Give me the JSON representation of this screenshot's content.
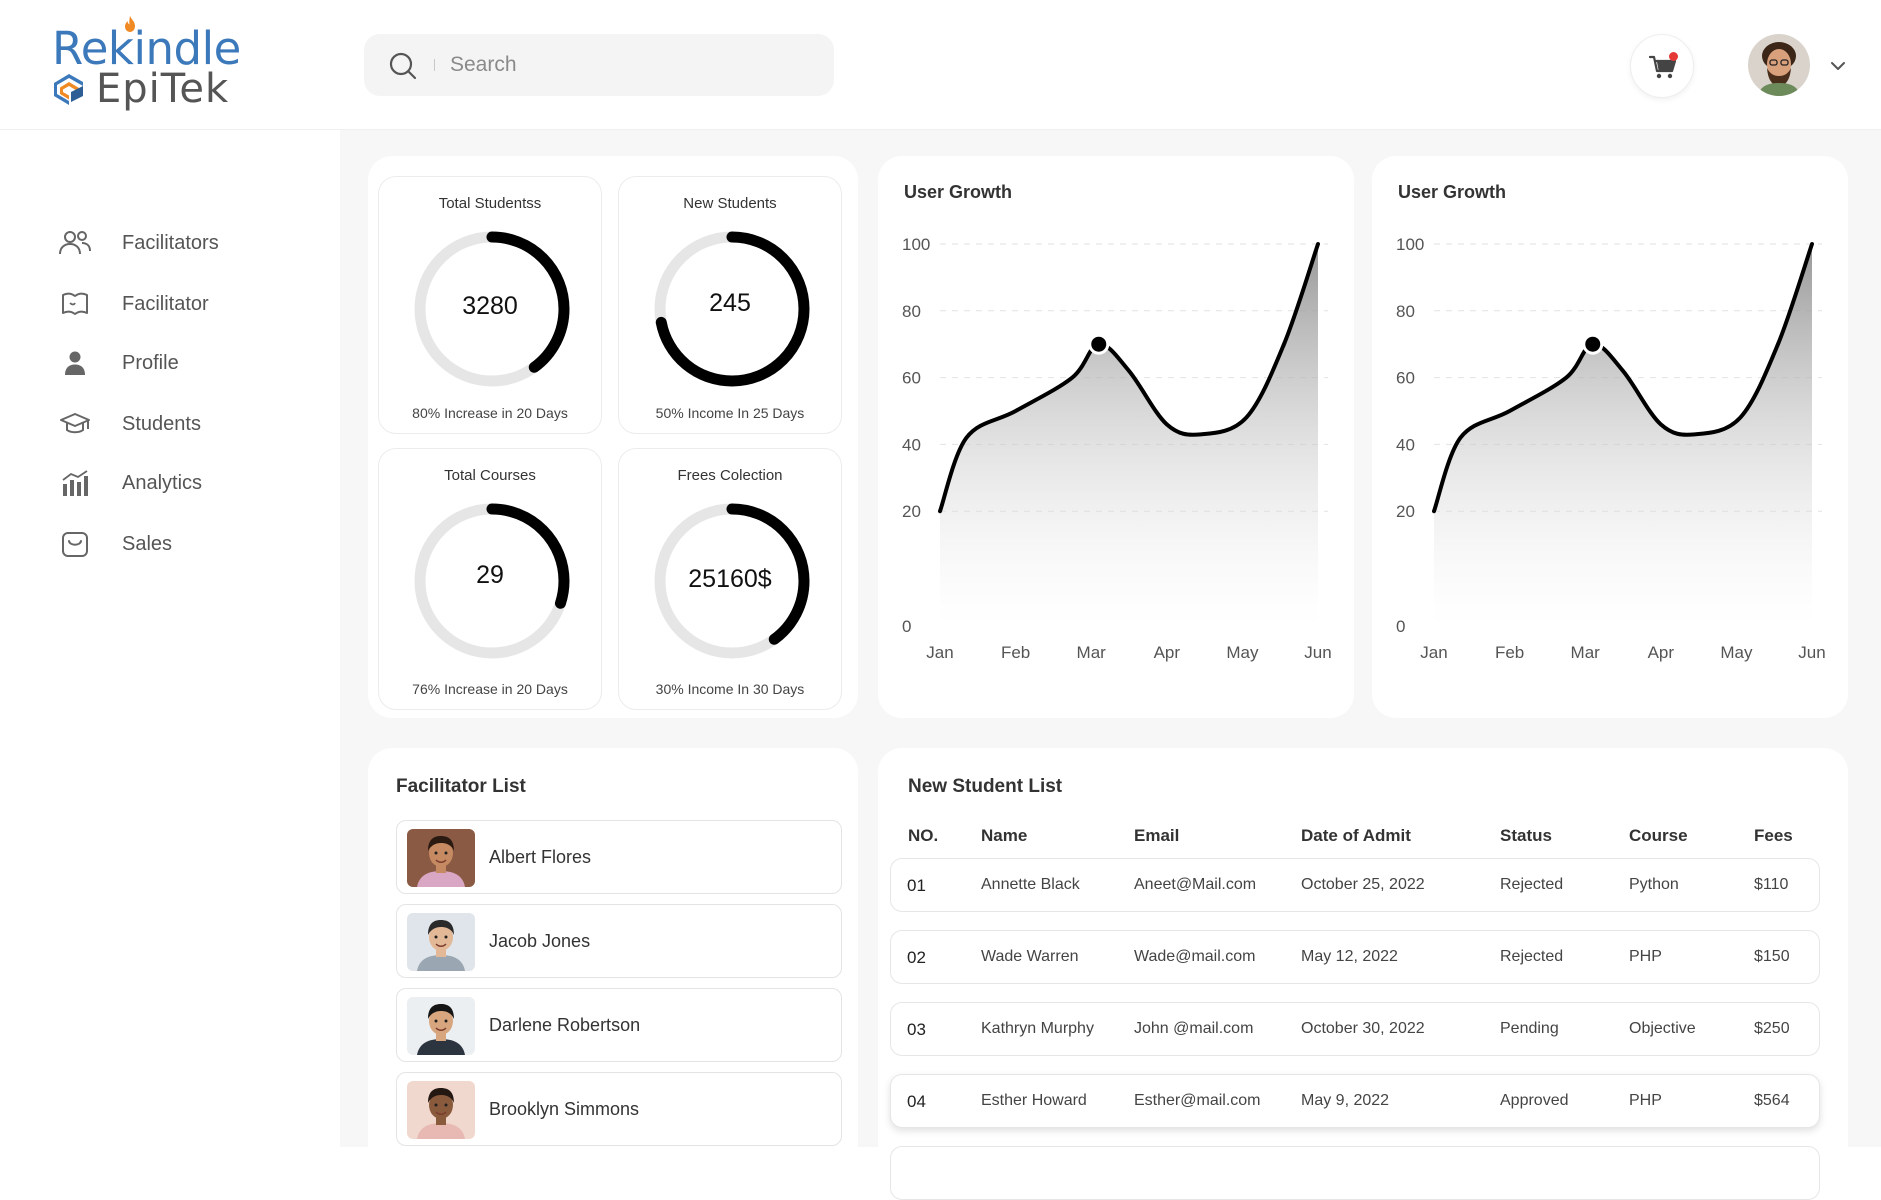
{
  "brand": {
    "line1": "Rekindle",
    "line2": "EpiTek",
    "primary": "#3c79bb",
    "accent": "#f08a24"
  },
  "search": {
    "placeholder": "Search",
    "value": ""
  },
  "header": {
    "cart_icon": "cart-icon",
    "notification_color": "#e53935"
  },
  "sidebar": {
    "items": [
      {
        "label": "Facilitators",
        "icon": "people-icon"
      },
      {
        "label": "Facilitator",
        "icon": "book-icon"
      },
      {
        "label": "Profile",
        "icon": "person-icon"
      },
      {
        "label": "Students",
        "icon": "graduation-cap-icon"
      },
      {
        "label": "Analytics",
        "icon": "bar-chart-icon"
      },
      {
        "label": "Sales",
        "icon": "bag-icon"
      }
    ]
  },
  "stats": [
    {
      "title": "Total Studentss",
      "value": "3280",
      "subtitle": "80% Increase in 20 Days",
      "progress": 0.4
    },
    {
      "title": "New Students",
      "value": "245",
      "subtitle": "50% Income In 25 Days",
      "progress": 0.72
    },
    {
      "title": "Total Courses",
      "value": "29",
      "subtitle": "76% Increase in 20 Days",
      "progress": 0.3
    },
    {
      "title": "Frees Colection",
      "value": "25160$",
      "subtitle": "30% Income In 30 Days",
      "progress": 0.4
    }
  ],
  "chart_data": [
    {
      "type": "area",
      "title": "User Growth",
      "categories": [
        "Jan",
        "Feb",
        "Mar",
        "Apr",
        "May",
        "Jun"
      ],
      "curve": [
        {
          "x": 0,
          "y": 20
        },
        {
          "x": 0.35,
          "y": 42
        },
        {
          "x": 1,
          "y": 50
        },
        {
          "x": 1.75,
          "y": 60
        },
        {
          "x": 2.1,
          "y": 70
        },
        {
          "x": 2.5,
          "y": 62
        },
        {
          "x": 3.0,
          "y": 46
        },
        {
          "x": 3.45,
          "y": 43
        },
        {
          "x": 4.05,
          "y": 48
        },
        {
          "x": 4.55,
          "y": 70
        },
        {
          "x": 5.0,
          "y": 100
        }
      ],
      "marker": {
        "x": 2.1,
        "y": 70
      },
      "yticks": [
        0,
        20,
        40,
        60,
        80,
        100
      ],
      "ylim": [
        0,
        100
      ],
      "grid": true
    },
    {
      "type": "area",
      "title": "User Growth",
      "categories": [
        "Jan",
        "Feb",
        "Mar",
        "Apr",
        "May",
        "Jun"
      ],
      "curve": [
        {
          "x": 0,
          "y": 20
        },
        {
          "x": 0.35,
          "y": 42
        },
        {
          "x": 1,
          "y": 50
        },
        {
          "x": 1.75,
          "y": 60
        },
        {
          "x": 2.1,
          "y": 70
        },
        {
          "x": 2.5,
          "y": 62
        },
        {
          "x": 3.0,
          "y": 46
        },
        {
          "x": 3.45,
          "y": 43
        },
        {
          "x": 4.05,
          "y": 48
        },
        {
          "x": 4.55,
          "y": 70
        },
        {
          "x": 5.0,
          "y": 100
        }
      ],
      "marker": {
        "x": 2.1,
        "y": 70
      },
      "yticks": [
        0,
        20,
        40,
        60,
        80,
        100
      ],
      "ylim": [
        0,
        100
      ],
      "grid": true
    }
  ],
  "facilitators": {
    "title": "Facilitator List",
    "items": [
      {
        "name": "Albert Flores",
        "skin": "#c68a62",
        "hair": "#2b1a12",
        "bg": "#8a5a44",
        "shirt": "#d9a6c4"
      },
      {
        "name": "Jacob Jones",
        "skin": "#e3b896",
        "hair": "#2a2a2a",
        "bg": "#dfe5ea",
        "shirt": "#9aa6b2"
      },
      {
        "name": "Darlene Robertson",
        "skin": "#d8a67e",
        "hair": "#151515",
        "bg": "#eceff1",
        "shirt": "#2c3440"
      },
      {
        "name": "Brooklyn Simmons",
        "skin": "#8a5a3c",
        "hair": "#241812",
        "bg": "#f1d8cf",
        "shirt": "#e7b9b2"
      }
    ]
  },
  "students": {
    "title": "New Student List",
    "columns": [
      "NO.",
      "Name",
      "Email",
      "Date of Admit",
      "Status",
      "Course",
      "Fees"
    ],
    "rows": [
      {
        "no": "01",
        "name": "Annette Black",
        "email": "Aneet@Mail.com",
        "date": "October 25, 2022",
        "status": "Rejected",
        "course": "Python",
        "fees": "$110"
      },
      {
        "no": "02",
        "name": "Wade Warren",
        "email": "Wade@mail.com",
        "date": "May 12, 2022",
        "status": "Rejected",
        "course": "PHP",
        "fees": "$150"
      },
      {
        "no": "03",
        "name": "Kathryn Murphy",
        "email": "John @mail.com",
        "date": "October 30, 2022",
        "status": "Pending",
        "course": "Objective",
        "fees": "$250"
      },
      {
        "no": "04",
        "name": "Esther Howard",
        "email": "Esther@mail.com",
        "date": "May 9, 2022",
        "status": "Approved",
        "course": "PHP",
        "fees": "$564"
      }
    ]
  }
}
